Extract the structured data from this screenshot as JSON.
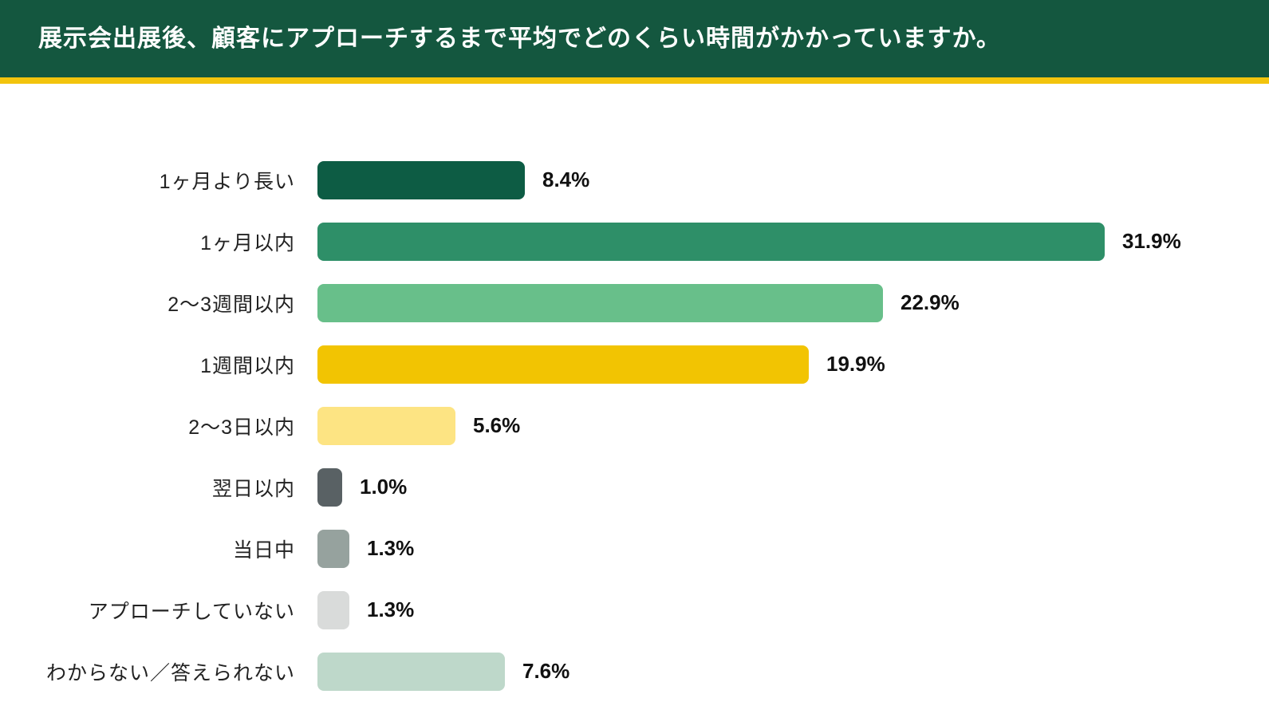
{
  "header": {
    "title": "展示会出展後、顧客にアプローチするまで平均でどのくらい時間がかかっていますか。",
    "background_color": "#14573F",
    "accent_stripe_color": "#F2C40D",
    "title_color": "#FFFFFF"
  },
  "chart_data": {
    "type": "bar",
    "orientation": "horizontal",
    "title": "展示会出展後、顧客にアプローチするまで平均でどのくらい時間がかかっていますか。",
    "categories": [
      "1ヶ月より長い",
      "1ヶ月以内",
      "2〜3週間以内",
      "1週間以内",
      "2〜3日以内",
      "翌日以内",
      "当日中",
      "アプローチしていない",
      "わからない／答えられない"
    ],
    "values": [
      8.4,
      31.9,
      22.9,
      19.9,
      5.6,
      1.0,
      1.3,
      1.3,
      7.6
    ],
    "value_labels": [
      "8.4%",
      "31.9%",
      "22.9%",
      "19.9%",
      "5.6%",
      "1.0%",
      "1.3%",
      "1.3%",
      "7.6%"
    ],
    "bar_colors": [
      "#0D5C44",
      "#2E8F68",
      "#68BF8A",
      "#F2C402",
      "#FDE483",
      "#596164",
      "#96A29E",
      "#D9DBDA",
      "#BED8CA"
    ],
    "unit": "%",
    "xlim": [
      0,
      32
    ],
    "grid": false,
    "legend": false,
    "data_labels_position": "right-of-bar"
  }
}
